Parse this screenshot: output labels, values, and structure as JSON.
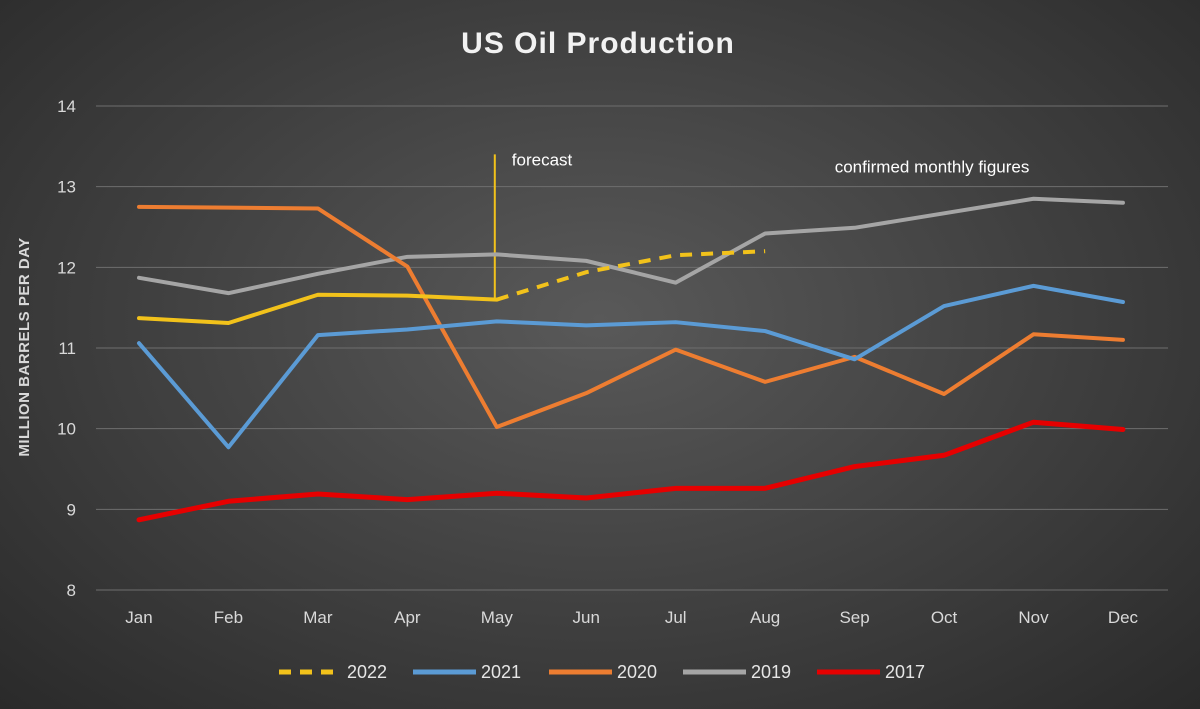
{
  "chart_data": {
    "type": "line",
    "title": "US Oil Production",
    "xlabel": "",
    "ylabel": "MILLION BARRELS PER DAY",
    "categories": [
      "Jan",
      "Feb",
      "Mar",
      "Apr",
      "May",
      "Jun",
      "Jul",
      "Aug",
      "Sep",
      "Oct",
      "Nov",
      "Dec"
    ],
    "ylim": [
      8,
      14
    ],
    "yticks": [
      8,
      9,
      10,
      11,
      12,
      13,
      14
    ],
    "grid": true,
    "legend_position": "bottom",
    "series": [
      {
        "name": "2022",
        "color": "#f2c21b",
        "style": "solid-then-dashed",
        "forecast_from_index": 4,
        "values": [
          11.37,
          11.31,
          11.66,
          11.65,
          11.6,
          11.94,
          12.15,
          12.2,
          null,
          null,
          null,
          null
        ]
      },
      {
        "name": "2021",
        "color": "#5b9bd5",
        "style": "solid",
        "values": [
          11.06,
          9.77,
          11.16,
          11.23,
          11.33,
          11.28,
          11.32,
          11.21,
          10.86,
          11.52,
          11.77,
          11.57
        ]
      },
      {
        "name": "2020",
        "color": "#ed7d31",
        "style": "solid",
        "values": [
          12.75,
          12.74,
          12.73,
          12.01,
          10.02,
          10.44,
          10.98,
          10.58,
          10.89,
          10.43,
          11.17,
          11.1
        ]
      },
      {
        "name": "2019",
        "color": "#a5a5a5",
        "style": "solid",
        "values": [
          11.87,
          11.68,
          11.92,
          12.13,
          12.16,
          12.08,
          11.81,
          12.42,
          12.49,
          12.67,
          12.85,
          12.8
        ]
      },
      {
        "name": "2017",
        "color": "#e60000",
        "style": "solid",
        "values": [
          8.87,
          9.1,
          9.19,
          9.12,
          9.2,
          9.14,
          9.26,
          9.26,
          9.53,
          9.67,
          10.08,
          9.99
        ]
      }
    ],
    "annotations": [
      {
        "text": "forecast",
        "at_category": "May",
        "y": 13.4,
        "color": "#f2c21b"
      },
      {
        "text": "confirmed monthly figures",
        "at_category": "Oct",
        "y": 13.3
      }
    ]
  }
}
